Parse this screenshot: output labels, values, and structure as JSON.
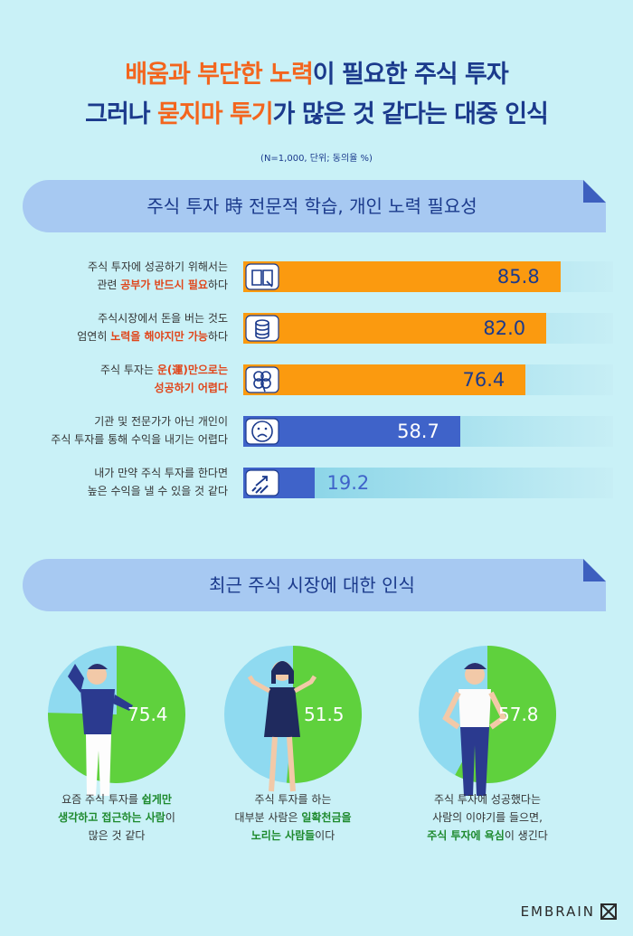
{
  "header": {
    "line1": {
      "a": "배움과 부단한 노력",
      "b": "이 필요한 주식 투자"
    },
    "line2": {
      "a": "그러나 ",
      "b": "묻지마 투기",
      "c": "가 많은 것 같다는 대중 인식"
    },
    "note": "(N=1,000, 단위; 동의율 %)"
  },
  "section1": {
    "title": "주식 투자 時 전문적 학습, 개인 노력 필요성"
  },
  "section2": {
    "title": "최근 주식 시장에 대한 인식"
  },
  "colors": {
    "orange": "#fb9a0f",
    "blue": "#3f63c9",
    "green": "#5fd13d",
    "light_blue": "#8fdaf0",
    "title": "#1b3a8c",
    "accent": "#f3651e"
  },
  "chart_data": [
    {
      "type": "bar",
      "orientation": "horizontal",
      "xlim": [
        0,
        100
      ],
      "categories": [
        "주식 투자에 성공하기 위해서는 관련 공부가 반드시 필요하다",
        "주식시장에서 돈을 버는 것도 엄연히 노력을 해야지만 가능하다",
        "주식 투자는 운(運)만으로는 성공하기 어렵다",
        "기관 및 전문가가 아닌 개인이 주식 투자를 통해 수익을 내기는 어렵다",
        "내가 만약 주식 투자를 한다면 높은 수익을 낼 수 있을 것 같다"
      ],
      "values": [
        85.8,
        82.0,
        76.4,
        58.7,
        19.2
      ],
      "labels": [
        "85.8",
        "82.0",
        "76.4",
        "58.7",
        "19.2"
      ],
      "bar_colors": [
        "#fb9a0f",
        "#fb9a0f",
        "#fb9a0f",
        "#3f63c9",
        "#3f63c9"
      ],
      "icons": [
        "book-icon",
        "coins-icon",
        "clover-icon",
        "sad-face-icon",
        "chart-arrow-icon"
      ],
      "rows": [
        {
          "l1": [
            {
              "t": "주식 투자에 성공하기 위해서는",
              "h": false
            }
          ],
          "l2": [
            {
              "t": "관련 ",
              "h": false
            },
            {
              "t": "공부가 반드시 필요",
              "h": true
            },
            {
              "t": "하다",
              "h": false
            }
          ]
        },
        {
          "l1": [
            {
              "t": "주식시장에서 돈을 버는 것도",
              "h": false
            }
          ],
          "l2": [
            {
              "t": "엄연히 ",
              "h": false
            },
            {
              "t": "노력을 해야지만 가능",
              "h": true
            },
            {
              "t": "하다",
              "h": false
            }
          ]
        },
        {
          "l1": [
            {
              "t": "주식 투자는 ",
              "h": false
            },
            {
              "t": "운(運)만으로는",
              "h": true
            }
          ],
          "l2": [
            {
              "t": "성공하기 어렵다",
              "h": true
            }
          ]
        },
        {
          "l1": [
            {
              "t": "기관 및 전문가가 아닌 개인이",
              "h": false
            }
          ],
          "l2": [
            {
              "t": "주식 투자를 통해 수익을 내기는 어렵다",
              "h": false
            }
          ]
        },
        {
          "l1": [
            {
              "t": "내가 만약 주식 투자를 한다면",
              "h": false
            }
          ],
          "l2": [
            {
              "t": "높은 수익을 낼 수 있을 것 같다",
              "h": false
            }
          ]
        }
      ]
    },
    {
      "type": "pie",
      "items": [
        {
          "value": 75.4,
          "label": "75.4",
          "icon": "confused-man-icon",
          "caption": [
            [
              {
                "t": "요즘 주식 투자를 ",
                "h": false
              },
              {
                "t": "쉽게만",
                "h": true
              }
            ],
            [
              {
                "t": "생각하고 접근하는 사람",
                "h": true
              },
              {
                "t": "이",
                "h": false
              }
            ],
            [
              {
                "t": "많은 것 같다",
                "h": false
              }
            ]
          ]
        },
        {
          "value": 51.5,
          "label": "51.5",
          "icon": "shrugging-woman-icon",
          "caption": [
            [
              {
                "t": "주식 투자를 하는",
                "h": false
              }
            ],
            [
              {
                "t": "대부분 사람은 ",
                "h": false
              },
              {
                "t": "일확천금을",
                "h": true
              }
            ],
            [
              {
                "t": "노리는 사람들",
                "h": true
              },
              {
                "t": "이다",
                "h": false
              }
            ]
          ]
        },
        {
          "value": 57.8,
          "label": "57.8",
          "icon": "hands-on-hips-man-icon",
          "caption": [
            [
              {
                "t": "주식 투자에 성공했다는",
                "h": false
              }
            ],
            [
              {
                "t": "사람의 이야기를 들으면,",
                "h": false
              }
            ],
            [
              {
                "t": "주식 투자에 욕심",
                "h": true
              },
              {
                "t": "이 생긴다",
                "h": false
              }
            ]
          ]
        }
      ]
    }
  ],
  "logo": {
    "text": "EMBRAIN"
  }
}
